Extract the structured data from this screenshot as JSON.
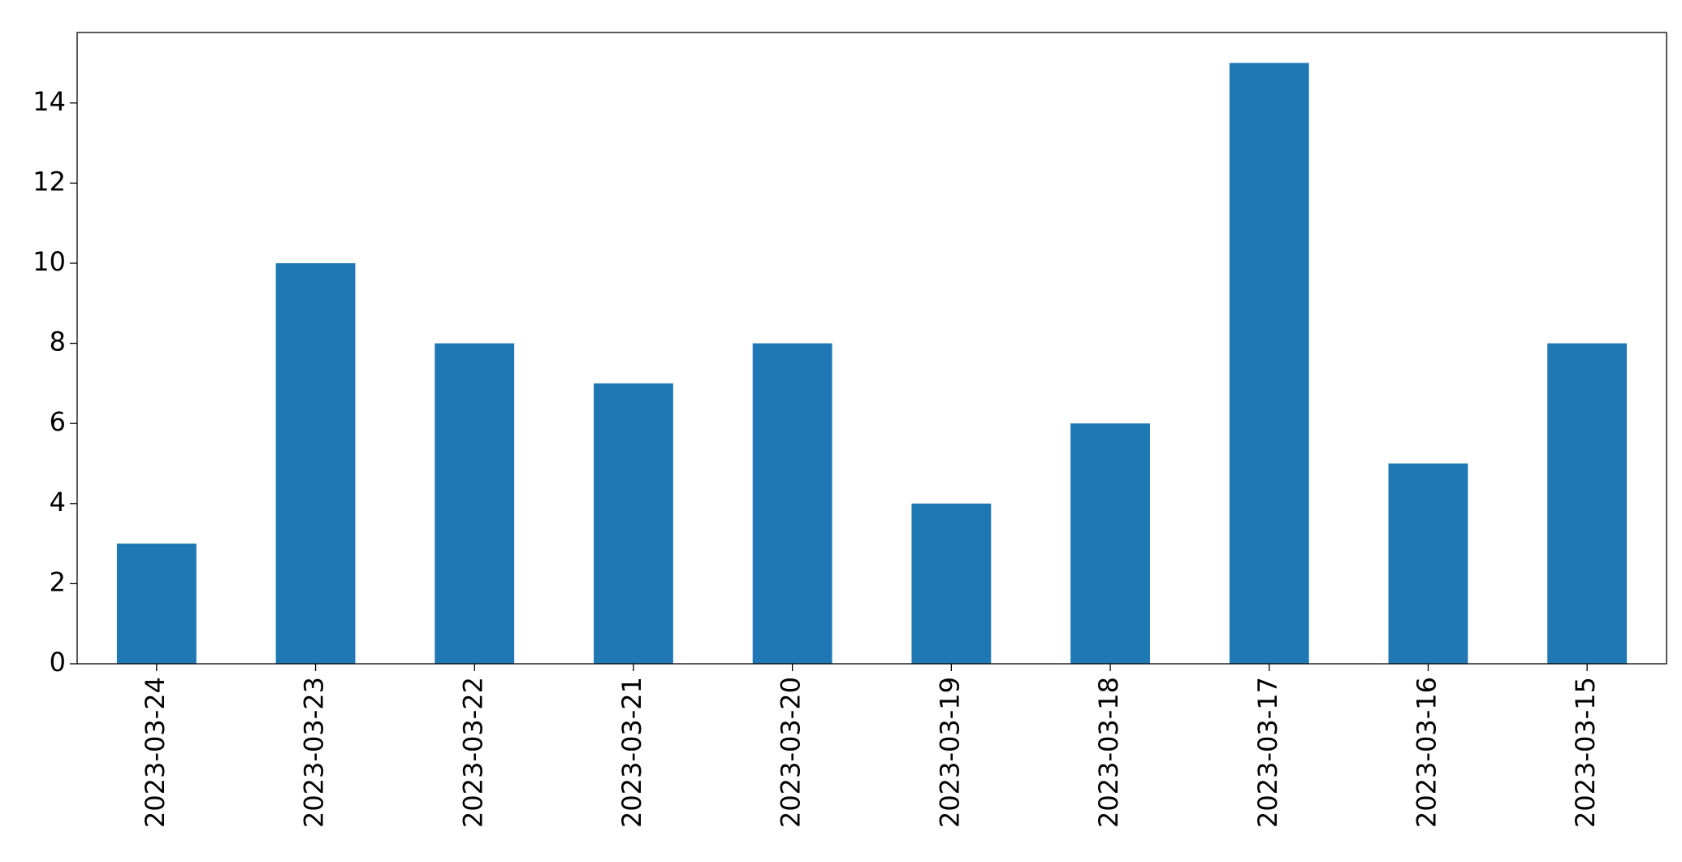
{
  "chart_data": {
    "type": "bar",
    "categories": [
      "2023-03-24",
      "2023-03-23",
      "2023-03-22",
      "2023-03-21",
      "2023-03-20",
      "2023-03-19",
      "2023-03-18",
      "2023-03-17",
      "2023-03-16",
      "2023-03-15"
    ],
    "values": [
      3,
      10,
      8,
      7,
      8,
      4,
      6,
      15,
      5,
      8
    ],
    "color": "#1f77b4",
    "ylim": [
      0,
      15.76
    ],
    "yticks": [
      0,
      2,
      4,
      6,
      8,
      10,
      12,
      14
    ],
    "grid": false
  }
}
